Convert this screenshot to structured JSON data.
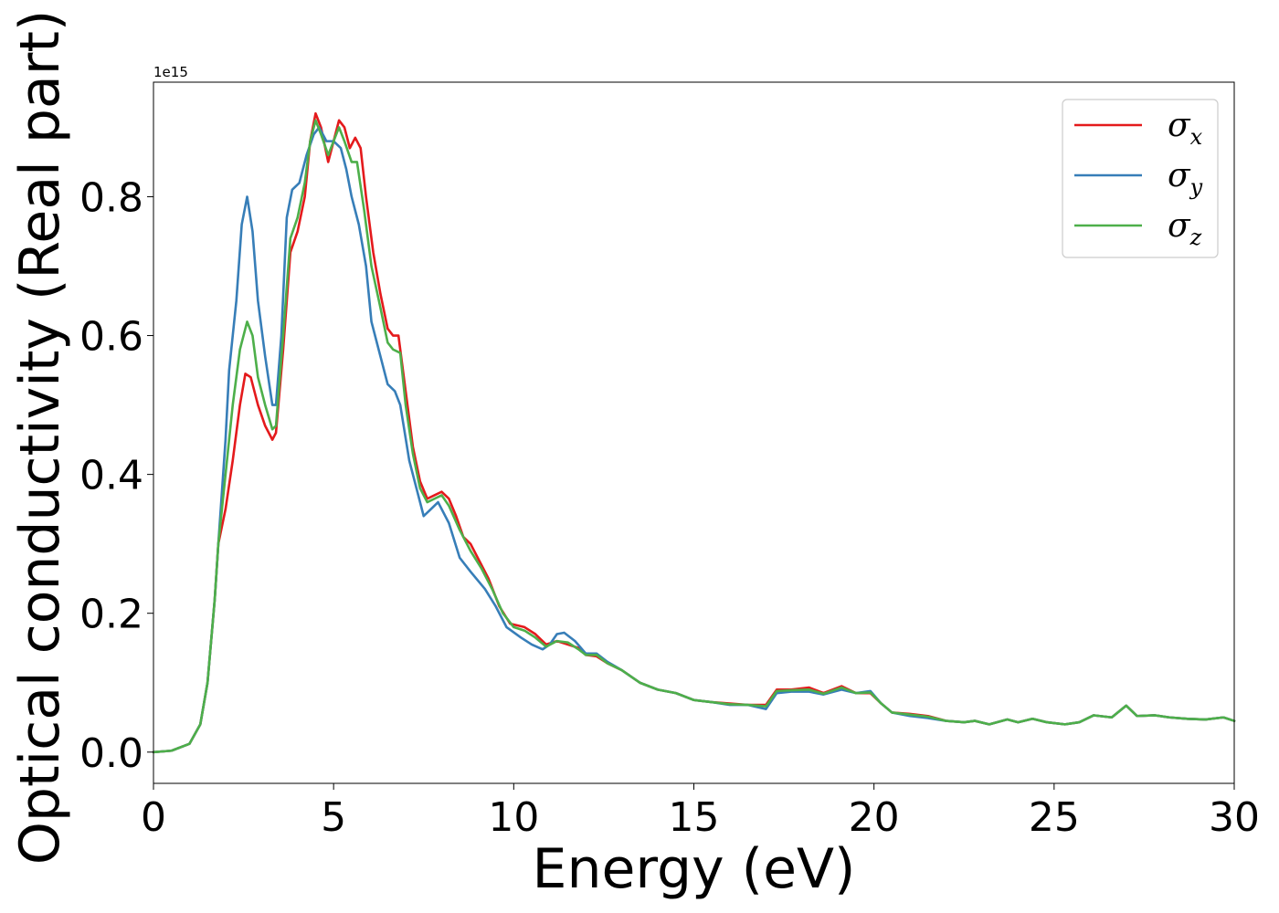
{
  "chart_data": {
    "type": "line",
    "title": "",
    "xlabel": "Energy (eV)",
    "ylabel": "Optical conductivity (Real part)",
    "y_offset_label": "1e15",
    "xlim": [
      0,
      30
    ],
    "ylim": [
      -0.045,
      0.965
    ],
    "xticks": [
      0,
      5,
      10,
      15,
      20,
      25,
      30
    ],
    "xtick_labels": [
      "0",
      "5",
      "10",
      "15",
      "20",
      "25",
      "30"
    ],
    "yticks": [
      0.0,
      0.2,
      0.4,
      0.6,
      0.8
    ],
    "ytick_labels": [
      "0.0",
      "0.2",
      "0.4",
      "0.6",
      "0.8"
    ],
    "grid": false,
    "legend_position": "top-right",
    "series": [
      {
        "name": "σx",
        "symbol": "σ",
        "subscript": "x",
        "color": "#e41a1c",
        "points": [
          [
            0.0,
            0.0
          ],
          [
            0.5,
            0.002
          ],
          [
            1.0,
            0.012
          ],
          [
            1.3,
            0.04
          ],
          [
            1.5,
            0.1
          ],
          [
            1.7,
            0.22
          ],
          [
            1.8,
            0.3
          ],
          [
            2.0,
            0.35
          ],
          [
            2.2,
            0.42
          ],
          [
            2.4,
            0.5
          ],
          [
            2.55,
            0.545
          ],
          [
            2.7,
            0.54
          ],
          [
            2.9,
            0.5
          ],
          [
            3.1,
            0.47
          ],
          [
            3.3,
            0.45
          ],
          [
            3.4,
            0.46
          ],
          [
            3.6,
            0.58
          ],
          [
            3.8,
            0.72
          ],
          [
            4.0,
            0.75
          ],
          [
            4.2,
            0.8
          ],
          [
            4.35,
            0.88
          ],
          [
            4.5,
            0.92
          ],
          [
            4.65,
            0.9
          ],
          [
            4.85,
            0.85
          ],
          [
            5.0,
            0.88
          ],
          [
            5.15,
            0.91
          ],
          [
            5.3,
            0.9
          ],
          [
            5.45,
            0.87
          ],
          [
            5.6,
            0.885
          ],
          [
            5.75,
            0.87
          ],
          [
            5.9,
            0.8
          ],
          [
            6.1,
            0.72
          ],
          [
            6.3,
            0.66
          ],
          [
            6.5,
            0.61
          ],
          [
            6.65,
            0.6
          ],
          [
            6.8,
            0.6
          ],
          [
            7.0,
            0.52
          ],
          [
            7.2,
            0.44
          ],
          [
            7.4,
            0.39
          ],
          [
            7.6,
            0.365
          ],
          [
            7.8,
            0.37
          ],
          [
            8.0,
            0.375
          ],
          [
            8.2,
            0.365
          ],
          [
            8.4,
            0.34
          ],
          [
            8.6,
            0.31
          ],
          [
            8.8,
            0.3
          ],
          [
            9.0,
            0.28
          ],
          [
            9.3,
            0.25
          ],
          [
            9.6,
            0.21
          ],
          [
            9.9,
            0.185
          ],
          [
            10.3,
            0.18
          ],
          [
            10.6,
            0.17
          ],
          [
            10.9,
            0.155
          ],
          [
            11.2,
            0.16
          ],
          [
            11.5,
            0.155
          ],
          [
            11.8,
            0.15
          ],
          [
            12.0,
            0.14
          ],
          [
            12.3,
            0.138
          ],
          [
            12.6,
            0.128
          ],
          [
            13.0,
            0.118
          ],
          [
            13.5,
            0.1
          ],
          [
            14.0,
            0.09
          ],
          [
            14.5,
            0.085
          ],
          [
            15.0,
            0.075
          ],
          [
            15.5,
            0.072
          ],
          [
            16.0,
            0.07
          ],
          [
            16.5,
            0.068
          ],
          [
            17.0,
            0.068
          ],
          [
            17.3,
            0.09
          ],
          [
            17.7,
            0.09
          ],
          [
            18.2,
            0.093
          ],
          [
            18.6,
            0.085
          ],
          [
            19.1,
            0.095
          ],
          [
            19.5,
            0.085
          ],
          [
            19.9,
            0.085
          ],
          [
            20.2,
            0.07
          ],
          [
            20.5,
            0.057
          ],
          [
            21.0,
            0.055
          ],
          [
            21.5,
            0.052
          ],
          [
            22.0,
            0.045
          ],
          [
            22.5,
            0.043
          ],
          [
            22.8,
            0.045
          ],
          [
            23.2,
            0.04
          ],
          [
            23.7,
            0.047
          ],
          [
            24.0,
            0.043
          ],
          [
            24.4,
            0.048
          ],
          [
            24.8,
            0.043
          ],
          [
            25.3,
            0.04
          ],
          [
            25.7,
            0.043
          ],
          [
            26.1,
            0.053
          ],
          [
            26.6,
            0.05
          ],
          [
            27.0,
            0.067
          ],
          [
            27.3,
            0.052
          ],
          [
            27.8,
            0.053
          ],
          [
            28.2,
            0.05
          ],
          [
            28.7,
            0.048
          ],
          [
            29.2,
            0.047
          ],
          [
            29.7,
            0.05
          ],
          [
            30.0,
            0.045
          ]
        ]
      },
      {
        "name": "σy",
        "symbol": "σ",
        "subscript": "y",
        "color": "#377eb8",
        "points": [
          [
            0.0,
            0.0
          ],
          [
            0.5,
            0.002
          ],
          [
            1.0,
            0.012
          ],
          [
            1.3,
            0.04
          ],
          [
            1.5,
            0.1
          ],
          [
            1.7,
            0.22
          ],
          [
            1.8,
            0.3
          ],
          [
            2.0,
            0.45
          ],
          [
            2.1,
            0.55
          ],
          [
            2.3,
            0.65
          ],
          [
            2.45,
            0.76
          ],
          [
            2.6,
            0.8
          ],
          [
            2.75,
            0.75
          ],
          [
            2.9,
            0.65
          ],
          [
            3.1,
            0.57
          ],
          [
            3.3,
            0.5
          ],
          [
            3.4,
            0.5
          ],
          [
            3.55,
            0.6
          ],
          [
            3.7,
            0.77
          ],
          [
            3.85,
            0.81
          ],
          [
            4.05,
            0.82
          ],
          [
            4.25,
            0.86
          ],
          [
            4.45,
            0.89
          ],
          [
            4.6,
            0.9
          ],
          [
            4.8,
            0.88
          ],
          [
            5.0,
            0.88
          ],
          [
            5.2,
            0.87
          ],
          [
            5.35,
            0.84
          ],
          [
            5.5,
            0.8
          ],
          [
            5.7,
            0.76
          ],
          [
            5.9,
            0.7
          ],
          [
            6.05,
            0.62
          ],
          [
            6.3,
            0.57
          ],
          [
            6.5,
            0.53
          ],
          [
            6.7,
            0.52
          ],
          [
            6.85,
            0.5
          ],
          [
            7.1,
            0.42
          ],
          [
            7.3,
            0.38
          ],
          [
            7.5,
            0.34
          ],
          [
            7.7,
            0.35
          ],
          [
            7.9,
            0.36
          ],
          [
            8.2,
            0.33
          ],
          [
            8.5,
            0.28
          ],
          [
            8.8,
            0.26
          ],
          [
            9.2,
            0.235
          ],
          [
            9.5,
            0.21
          ],
          [
            9.8,
            0.18
          ],
          [
            10.2,
            0.165
          ],
          [
            10.5,
            0.155
          ],
          [
            10.8,
            0.148
          ],
          [
            11.0,
            0.155
          ],
          [
            11.2,
            0.17
          ],
          [
            11.4,
            0.172
          ],
          [
            11.7,
            0.16
          ],
          [
            12.0,
            0.142
          ],
          [
            12.3,
            0.142
          ],
          [
            12.6,
            0.13
          ],
          [
            13.0,
            0.118
          ],
          [
            13.5,
            0.1
          ],
          [
            14.0,
            0.09
          ],
          [
            14.5,
            0.085
          ],
          [
            15.0,
            0.075
          ],
          [
            15.5,
            0.072
          ],
          [
            16.0,
            0.068
          ],
          [
            16.5,
            0.068
          ],
          [
            17.0,
            0.062
          ],
          [
            17.3,
            0.085
          ],
          [
            17.7,
            0.087
          ],
          [
            18.2,
            0.087
          ],
          [
            18.6,
            0.083
          ],
          [
            19.1,
            0.09
          ],
          [
            19.5,
            0.085
          ],
          [
            19.9,
            0.088
          ],
          [
            20.2,
            0.07
          ],
          [
            20.5,
            0.057
          ],
          [
            21.0,
            0.052
          ],
          [
            21.5,
            0.049
          ],
          [
            22.0,
            0.045
          ],
          [
            22.5,
            0.043
          ],
          [
            22.8,
            0.045
          ],
          [
            23.2,
            0.04
          ],
          [
            23.7,
            0.047
          ],
          [
            24.0,
            0.043
          ],
          [
            24.4,
            0.048
          ],
          [
            24.8,
            0.043
          ],
          [
            25.3,
            0.04
          ],
          [
            25.7,
            0.043
          ],
          [
            26.1,
            0.053
          ],
          [
            26.6,
            0.05
          ],
          [
            27.0,
            0.067
          ],
          [
            27.3,
            0.052
          ],
          [
            27.8,
            0.053
          ],
          [
            28.2,
            0.05
          ],
          [
            28.7,
            0.048
          ],
          [
            29.2,
            0.047
          ],
          [
            29.7,
            0.05
          ],
          [
            30.0,
            0.045
          ]
        ]
      },
      {
        "name": "σz",
        "symbol": "σ",
        "subscript": "z",
        "color": "#4daf4a",
        "points": [
          [
            0.0,
            0.0
          ],
          [
            0.5,
            0.002
          ],
          [
            1.0,
            0.012
          ],
          [
            1.3,
            0.04
          ],
          [
            1.5,
            0.1
          ],
          [
            1.7,
            0.22
          ],
          [
            1.8,
            0.3
          ],
          [
            2.0,
            0.4
          ],
          [
            2.2,
            0.5
          ],
          [
            2.4,
            0.58
          ],
          [
            2.6,
            0.62
          ],
          [
            2.75,
            0.6
          ],
          [
            2.9,
            0.54
          ],
          [
            3.1,
            0.5
          ],
          [
            3.3,
            0.465
          ],
          [
            3.4,
            0.47
          ],
          [
            3.6,
            0.6
          ],
          [
            3.8,
            0.74
          ],
          [
            4.0,
            0.77
          ],
          [
            4.2,
            0.82
          ],
          [
            4.35,
            0.88
          ],
          [
            4.5,
            0.91
          ],
          [
            4.65,
            0.89
          ],
          [
            4.85,
            0.86
          ],
          [
            5.0,
            0.88
          ],
          [
            5.15,
            0.9
          ],
          [
            5.3,
            0.88
          ],
          [
            5.5,
            0.85
          ],
          [
            5.65,
            0.85
          ],
          [
            5.85,
            0.78
          ],
          [
            6.05,
            0.7
          ],
          [
            6.3,
            0.64
          ],
          [
            6.5,
            0.59
          ],
          [
            6.65,
            0.58
          ],
          [
            6.85,
            0.575
          ],
          [
            7.0,
            0.5
          ],
          [
            7.2,
            0.43
          ],
          [
            7.4,
            0.38
          ],
          [
            7.6,
            0.36
          ],
          [
            7.8,
            0.365
          ],
          [
            8.0,
            0.37
          ],
          [
            8.2,
            0.355
          ],
          [
            8.5,
            0.32
          ],
          [
            8.8,
            0.29
          ],
          [
            9.1,
            0.265
          ],
          [
            9.4,
            0.235
          ],
          [
            9.7,
            0.2
          ],
          [
            10.0,
            0.18
          ],
          [
            10.3,
            0.175
          ],
          [
            10.6,
            0.165
          ],
          [
            10.9,
            0.152
          ],
          [
            11.2,
            0.16
          ],
          [
            11.5,
            0.158
          ],
          [
            11.8,
            0.148
          ],
          [
            12.0,
            0.14
          ],
          [
            12.3,
            0.14
          ],
          [
            12.6,
            0.128
          ],
          [
            13.0,
            0.118
          ],
          [
            13.5,
            0.1
          ],
          [
            14.0,
            0.09
          ],
          [
            14.5,
            0.085
          ],
          [
            15.0,
            0.075
          ],
          [
            15.5,
            0.072
          ],
          [
            16.0,
            0.069
          ],
          [
            16.5,
            0.068
          ],
          [
            17.0,
            0.066
          ],
          [
            17.3,
            0.088
          ],
          [
            17.7,
            0.089
          ],
          [
            18.2,
            0.09
          ],
          [
            18.6,
            0.084
          ],
          [
            19.1,
            0.093
          ],
          [
            19.5,
            0.085
          ],
          [
            19.9,
            0.086
          ],
          [
            20.2,
            0.07
          ],
          [
            20.5,
            0.057
          ],
          [
            21.0,
            0.054
          ],
          [
            21.5,
            0.051
          ],
          [
            22.0,
            0.045
          ],
          [
            22.5,
            0.043
          ],
          [
            22.8,
            0.045
          ],
          [
            23.2,
            0.04
          ],
          [
            23.7,
            0.047
          ],
          [
            24.0,
            0.043
          ],
          [
            24.4,
            0.048
          ],
          [
            24.8,
            0.043
          ],
          [
            25.3,
            0.04
          ],
          [
            25.7,
            0.043
          ],
          [
            26.1,
            0.053
          ],
          [
            26.6,
            0.05
          ],
          [
            27.0,
            0.067
          ],
          [
            27.3,
            0.052
          ],
          [
            27.8,
            0.053
          ],
          [
            28.2,
            0.05
          ],
          [
            28.7,
            0.048
          ],
          [
            29.2,
            0.047
          ],
          [
            29.7,
            0.05
          ],
          [
            30.0,
            0.045
          ]
        ]
      }
    ]
  }
}
